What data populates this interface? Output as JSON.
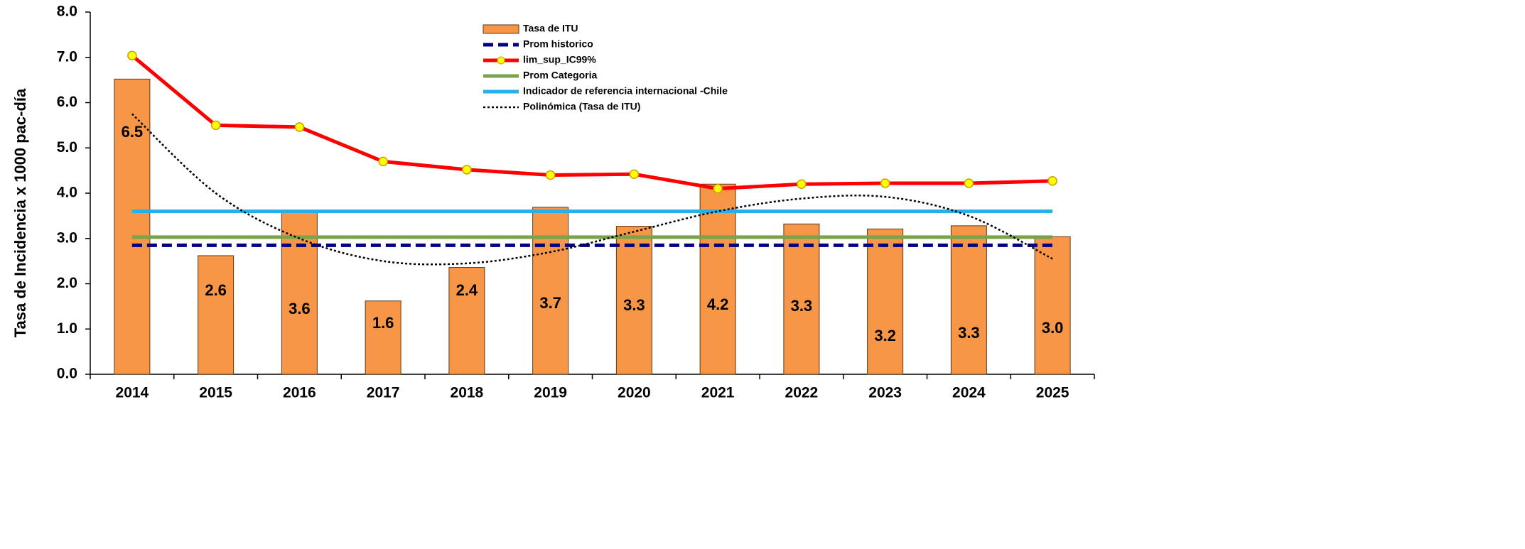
{
  "chart_data": {
    "type": "bar",
    "y_label": "Tasa de Incidencia x 1000 pac-día",
    "categories": [
      "2014",
      "2015",
      "2016",
      "2017",
      "2018",
      "2019",
      "2020",
      "2021",
      "2022",
      "2023",
      "2024",
      "2025"
    ],
    "ylim": [
      0,
      8
    ],
    "yticks": [
      {
        "value": 0,
        "label": "0.0"
      },
      {
        "value": 1,
        "label": "1.0"
      },
      {
        "value": 2,
        "label": "2.0"
      },
      {
        "value": 3,
        "label": "3.0"
      },
      {
        "value": 4,
        "label": "4.0"
      },
      {
        "value": 5,
        "label": "5.0"
      },
      {
        "value": 6,
        "label": "6.0"
      },
      {
        "value": 7,
        "label": "7.0"
      },
      {
        "value": 8,
        "label": "8.0"
      }
    ],
    "grid": false,
    "series": [
      {
        "name": "Tasa de ITU",
        "type": "bar",
        "color": "#f79646",
        "values": [
          6.52,
          2.62,
          3.57,
          1.62,
          2.36,
          3.69,
          3.27,
          4.2,
          3.32,
          3.21,
          3.28,
          3.04
        ],
        "value_labels": [
          "6.5",
          "2.6",
          "3.6",
          "1.6",
          "2.4",
          "3.7",
          "3.3",
          "4.2",
          "3.3",
          "3.2",
          "3.3",
          "3.0"
        ]
      },
      {
        "name": "Prom historico",
        "type": "line",
        "color": "#000080",
        "dash": "dashed",
        "values": [
          2.85,
          2.85,
          2.85,
          2.85,
          2.85,
          2.85,
          2.85,
          2.85,
          2.85,
          2.85,
          2.85,
          2.85
        ]
      },
      {
        "name": "lim_sup_IC99%",
        "type": "line",
        "color": "#ff0000",
        "marker": "circle",
        "values": [
          7.04,
          5.5,
          5.46,
          4.7,
          4.52,
          4.4,
          4.42,
          4.1,
          4.2,
          4.22,
          4.22,
          4.27
        ]
      },
      {
        "name": "Prom Categoria",
        "type": "line",
        "color": "#7ba34b",
        "values": [
          3.03,
          3.03,
          3.03,
          3.03,
          3.03,
          3.03,
          3.03,
          3.03,
          3.03,
          3.03,
          3.03,
          3.03
        ]
      },
      {
        "name": "Indicador de referencia internacional -Chile",
        "type": "line",
        "color": "#22b2e8",
        "values": [
          3.6,
          3.6,
          3.6,
          3.6,
          3.6,
          3.6,
          3.6,
          3.6,
          3.6,
          3.6,
          3.6,
          3.6
        ]
      },
      {
        "name": "Polinómica (Tasa de ITU)",
        "type": "line",
        "color": "#000000",
        "dash": "dotted",
        "smooth": true,
        "values": [
          5.75,
          4.0,
          3.0,
          2.5,
          2.45,
          2.7,
          3.15,
          3.6,
          3.88,
          3.92,
          3.5,
          2.55
        ]
      }
    ]
  }
}
